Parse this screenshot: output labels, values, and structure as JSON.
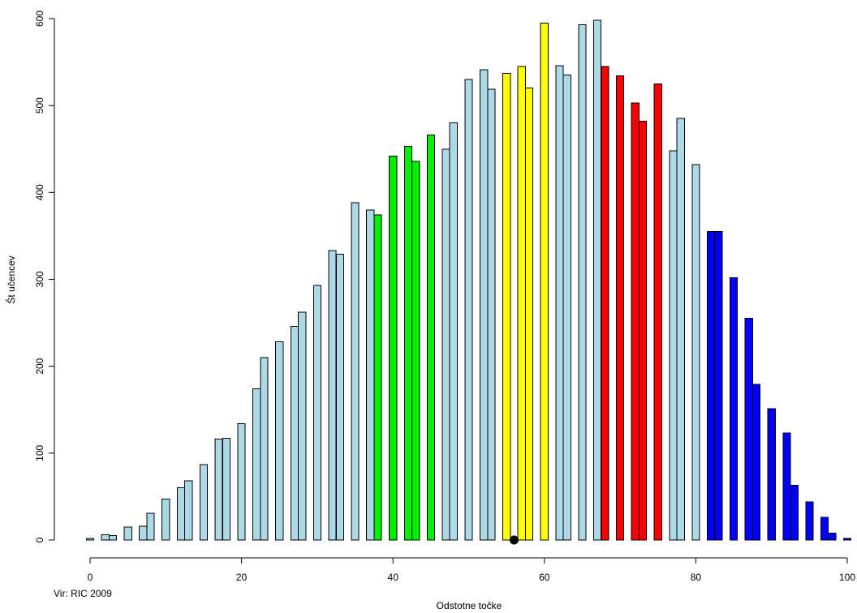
{
  "chart_data": {
    "type": "bar",
    "xlabel": "Odstotne točke",
    "ylabel": "Št učencev",
    "source_note": "Vir: RIC 2009",
    "xlim": [
      0,
      100
    ],
    "ylim": [
      0,
      600
    ],
    "x_ticks": [
      0,
      20,
      40,
      60,
      80,
      100
    ],
    "y_ticks": [
      0,
      100,
      200,
      300,
      400,
      500,
      600
    ],
    "grid": false,
    "legend": "none",
    "colors": {
      "lightblue": "#add8e6",
      "green": "#00ee00",
      "yellow": "#ffff00",
      "red": "#ff0000",
      "blue": "#0000ff",
      "marker": "#000000"
    },
    "marker": {
      "x": 56,
      "y": 0
    },
    "bars": [
      {
        "x": 0,
        "value": 2,
        "color": "lightblue"
      },
      {
        "x": 2,
        "value": 6,
        "color": "lightblue"
      },
      {
        "x": 3,
        "value": 5,
        "color": "lightblue"
      },
      {
        "x": 5,
        "value": 15,
        "color": "lightblue"
      },
      {
        "x": 7,
        "value": 16,
        "color": "lightblue"
      },
      {
        "x": 8,
        "value": 31,
        "color": "lightblue"
      },
      {
        "x": 10,
        "value": 47,
        "color": "lightblue"
      },
      {
        "x": 12,
        "value": 60,
        "color": "lightblue"
      },
      {
        "x": 13,
        "value": 68,
        "color": "lightblue"
      },
      {
        "x": 15,
        "value": 87,
        "color": "lightblue"
      },
      {
        "x": 17,
        "value": 116,
        "color": "lightblue"
      },
      {
        "x": 18,
        "value": 117,
        "color": "lightblue"
      },
      {
        "x": 20,
        "value": 134,
        "color": "lightblue"
      },
      {
        "x": 22,
        "value": 174,
        "color": "lightblue"
      },
      {
        "x": 23,
        "value": 210,
        "color": "lightblue"
      },
      {
        "x": 25,
        "value": 228,
        "color": "lightblue"
      },
      {
        "x": 27,
        "value": 246,
        "color": "lightblue"
      },
      {
        "x": 28,
        "value": 262,
        "color": "lightblue"
      },
      {
        "x": 30,
        "value": 293,
        "color": "lightblue"
      },
      {
        "x": 32,
        "value": 333,
        "color": "lightblue"
      },
      {
        "x": 33,
        "value": 329,
        "color": "lightblue"
      },
      {
        "x": 35,
        "value": 388,
        "color": "lightblue"
      },
      {
        "x": 37,
        "value": 380,
        "color": "lightblue"
      },
      {
        "x": 38,
        "value": 374,
        "color": "green"
      },
      {
        "x": 40,
        "value": 442,
        "color": "green"
      },
      {
        "x": 42,
        "value": 453,
        "color": "green"
      },
      {
        "x": 43,
        "value": 436,
        "color": "green"
      },
      {
        "x": 45,
        "value": 466,
        "color": "green"
      },
      {
        "x": 47,
        "value": 450,
        "color": "lightblue"
      },
      {
        "x": 48,
        "value": 480,
        "color": "lightblue"
      },
      {
        "x": 50,
        "value": 530,
        "color": "lightblue"
      },
      {
        "x": 52,
        "value": 541,
        "color": "lightblue"
      },
      {
        "x": 53,
        "value": 519,
        "color": "lightblue"
      },
      {
        "x": 55,
        "value": 537,
        "color": "yellow"
      },
      {
        "x": 57,
        "value": 545,
        "color": "yellow"
      },
      {
        "x": 58,
        "value": 520,
        "color": "yellow"
      },
      {
        "x": 60,
        "value": 595,
        "color": "yellow"
      },
      {
        "x": 62,
        "value": 546,
        "color": "lightblue"
      },
      {
        "x": 63,
        "value": 535,
        "color": "lightblue"
      },
      {
        "x": 65,
        "value": 593,
        "color": "lightblue"
      },
      {
        "x": 67,
        "value": 598,
        "color": "lightblue"
      },
      {
        "x": 68,
        "value": 545,
        "color": "red"
      },
      {
        "x": 70,
        "value": 534,
        "color": "red"
      },
      {
        "x": 72,
        "value": 503,
        "color": "red"
      },
      {
        "x": 73,
        "value": 482,
        "color": "red"
      },
      {
        "x": 75,
        "value": 525,
        "color": "red"
      },
      {
        "x": 77,
        "value": 448,
        "color": "lightblue"
      },
      {
        "x": 78,
        "value": 485,
        "color": "lightblue"
      },
      {
        "x": 80,
        "value": 432,
        "color": "lightblue"
      },
      {
        "x": 82,
        "value": 355,
        "color": "blue"
      },
      {
        "x": 83,
        "value": 355,
        "color": "blue"
      },
      {
        "x": 85,
        "value": 302,
        "color": "blue"
      },
      {
        "x": 87,
        "value": 255,
        "color": "blue"
      },
      {
        "x": 88,
        "value": 179,
        "color": "blue"
      },
      {
        "x": 90,
        "value": 151,
        "color": "blue"
      },
      {
        "x": 92,
        "value": 123,
        "color": "blue"
      },
      {
        "x": 93,
        "value": 63,
        "color": "blue"
      },
      {
        "x": 95,
        "value": 44,
        "color": "blue"
      },
      {
        "x": 97,
        "value": 26,
        "color": "blue"
      },
      {
        "x": 98,
        "value": 8,
        "color": "blue"
      },
      {
        "x": 100,
        "value": 2,
        "color": "blue"
      }
    ]
  }
}
